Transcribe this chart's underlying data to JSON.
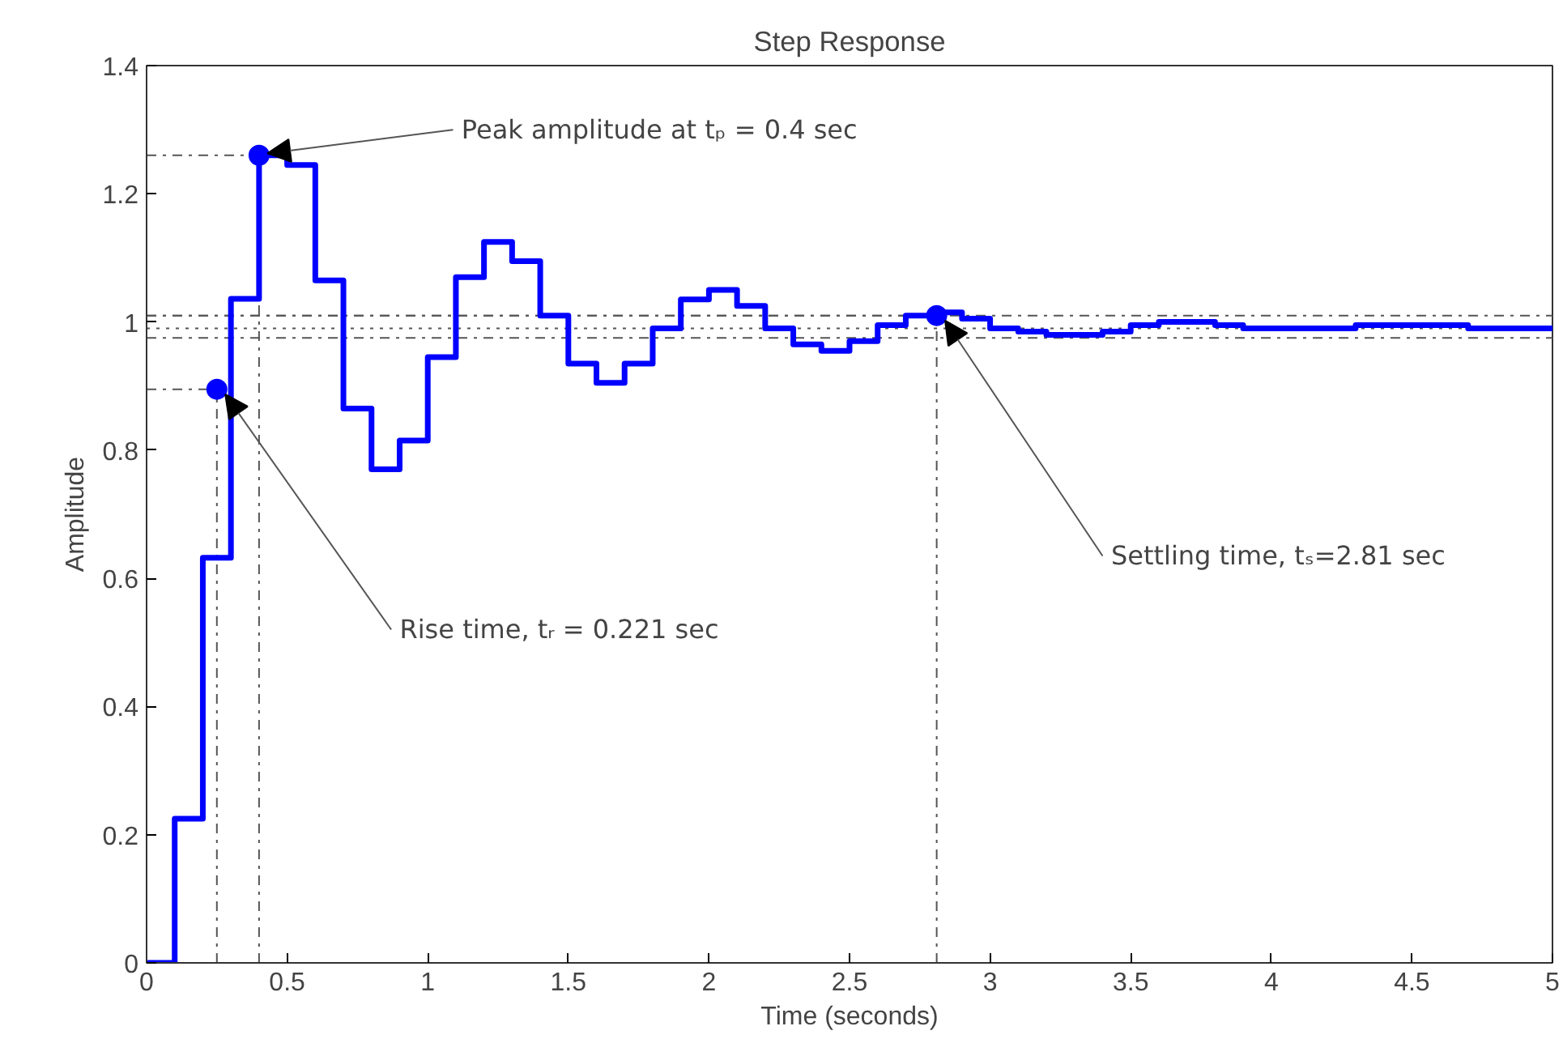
{
  "chart_data": {
    "type": "step",
    "title": "Step Response",
    "xlabel": "Time (seconds)",
    "ylabel": "Amplitude",
    "x": [
      0,
      0.1,
      0.2,
      0.3,
      0.4,
      0.5,
      0.6,
      0.7,
      0.8,
      0.9,
      1.0,
      1.1,
      1.2,
      1.3,
      1.4,
      1.5,
      1.6,
      1.7,
      1.8,
      1.9,
      2.0,
      2.1,
      2.2,
      2.3,
      2.4,
      2.5,
      2.6,
      2.7,
      2.8,
      2.9,
      3.0,
      3.1,
      3.2,
      3.3,
      3.4,
      3.5,
      3.6,
      3.7,
      3.8,
      3.9,
      4.0,
      4.1,
      4.2,
      4.3,
      4.4,
      4.5,
      4.6,
      4.7,
      4.8,
      4.9,
      5.0
    ],
    "series": [
      {
        "type": "scatter",
        "marker": "circle",
        "line_style": "dashed",
        "color": "#0000ff",
        "x": [
          0.25,
          0.4,
          2.81
        ],
        "values": [
          0.895,
          1.26,
          1.01
        ],
        "errors": [
          [
            0,
            0.895
          ],
          [
            0,
            1.26
          ],
          [
            0,
            1.01
          ]
        ],
        "xerrors": [
          [
            0,
            0.25
          ],
          [
            0,
            0.4
          ],
          [
            0,
            2.81
          ]
        ]
      },
      {
        "color": "#0000ff",
        "values": [
          0,
          0.225,
          0.632,
          1.036,
          1.26,
          1.245,
          1.065,
          0.865,
          0.77,
          0.815,
          0.945,
          1.07,
          1.125,
          1.095,
          1.01,
          0.935,
          0.905,
          0.935,
          0.99,
          1.035,
          1.05,
          1.025,
          0.99,
          0.965,
          0.955,
          0.97,
          0.995,
          1.01,
          1.015,
          1.005,
          0.99,
          0.985,
          0.98,
          0.98,
          0.985,
          0.995,
          1.0,
          1.0,
          0.995,
          0.99,
          0.99,
          0.99,
          0.99,
          0.995,
          0.995,
          0.995,
          0.995,
          0.99,
          0.99,
          0.99,
          0.99
        ]
      }
    ],
    "xlim": [
      0,
      5
    ],
    "ylim": [
      0,
      1.4
    ],
    "xticks": [
      0,
      0.5,
      1,
      1.5,
      2,
      2.5,
      3,
      3.5,
      4,
      4.5,
      5
    ],
    "yticks": [
      0,
      0.2,
      0.4,
      0.6,
      0.8,
      1,
      1.2,
      1.4
    ],
    "grid": false,
    "marker": "none",
    "line_style": "solid",
    "ref_lines": [
      {
        "axis": "y",
        "value": 1.01,
        "line_style": "dashed",
        "color": "#555555"
      },
      {
        "axis": "y",
        "value": 0.99,
        "line_style": "dotted",
        "color": "#555555"
      },
      {
        "axis": "y",
        "value": 0.975,
        "line_style": "dashed",
        "color": "#555555"
      }
    ],
    "annotations": [
      {
        "text": "Peak amplitude at tₚ = 0.4 sec",
        "x": 0.4,
        "y": 1.26
      },
      {
        "text": "Rise time, tᵣ = 0.221 sec",
        "x": 0.25,
        "y": 0.895
      },
      {
        "text": "Settling time, tₛ=2.81 sec",
        "x": 2.81,
        "y": 1.01
      }
    ]
  }
}
